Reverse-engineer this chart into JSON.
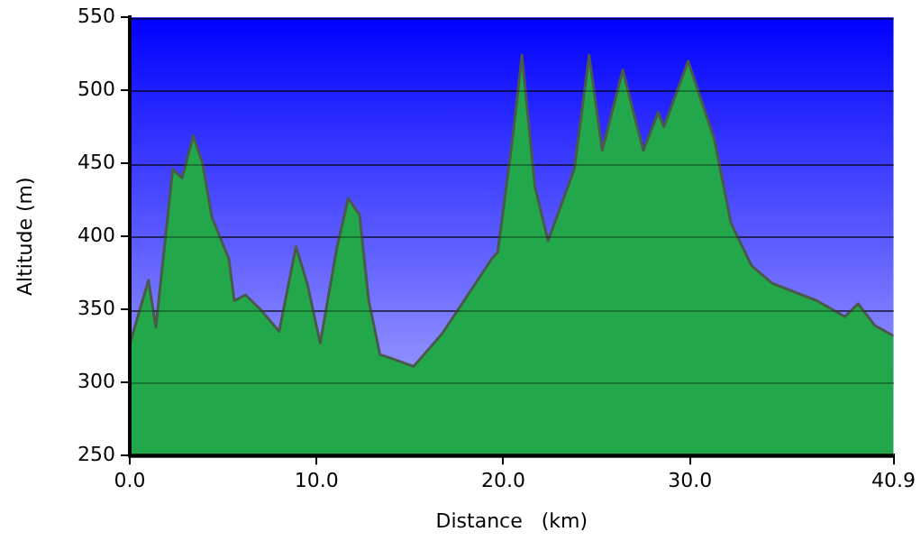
{
  "chart_data": {
    "type": "area",
    "xlabel": "Distance   (km)",
    "ylabel": "Altitude (m)",
    "x": [
      0,
      0.2,
      1.0,
      1.4,
      2.3,
      2.8,
      3.4,
      3.9,
      4.4,
      5.3,
      5.6,
      6.2,
      7.0,
      8.0,
      8.9,
      9.5,
      10.2,
      11.1,
      11.7,
      12.3,
      12.8,
      13.4,
      13.9,
      15.2,
      16.7,
      17.9,
      19.4,
      19.7,
      20.5,
      21.0,
      21.7,
      22.4,
      23.8,
      24.6,
      25.3,
      26.4,
      27.5,
      28.3,
      28.6,
      29.9,
      31.3,
      32.2,
      33.3,
      34.4,
      36.8,
      38.3,
      39.0,
      39.9,
      40.9
    ],
    "series": [
      {
        "color": "#22a84a",
        "values": [
          325,
          335,
          370,
          338,
          446,
          440,
          469,
          450,
          413,
          385,
          356,
          360,
          350,
          335,
          393,
          368,
          327,
          393,
          426,
          415,
          356,
          319,
          317,
          311,
          333,
          356,
          385,
          389,
          467,
          524,
          434,
          397,
          446,
          524,
          459,
          514,
          459,
          485,
          475,
          520,
          467,
          409,
          380,
          368,
          356,
          345,
          354,
          339,
          332
        ]
      }
    ],
    "xlim": [
      0,
      40.9
    ],
    "xticks": [
      {
        "value": 0,
        "label": "0.0"
      },
      {
        "value": 10,
        "label": "10.0"
      },
      {
        "value": 20,
        "label": "20.0"
      },
      {
        "value": 30,
        "label": "30.0"
      },
      40.9
    ],
    "ylim": [
      250,
      550
    ],
    "yticks": [
      250,
      300,
      350,
      400,
      450,
      500,
      550
    ],
    "grid": "y",
    "legend": false,
    "marker": "none",
    "line_style": "solid"
  }
}
